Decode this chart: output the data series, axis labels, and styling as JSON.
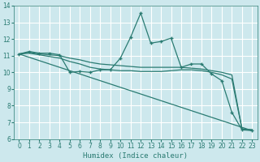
{
  "xlabel": "Humidex (Indice chaleur)",
  "xlim": [
    -0.5,
    23.5
  ],
  "ylim": [
    6,
    14
  ],
  "xticks": [
    0,
    1,
    2,
    3,
    4,
    5,
    6,
    7,
    8,
    9,
    10,
    11,
    12,
    13,
    14,
    15,
    16,
    17,
    18,
    19,
    20,
    21,
    22,
    23
  ],
  "yticks": [
    6,
    7,
    8,
    9,
    10,
    11,
    12,
    13,
    14
  ],
  "bg_color": "#cde8ed",
  "grid_color": "#ffffff",
  "line_color": "#2a7b72",
  "lines": [
    {
      "x": [
        0,
        1,
        2,
        3,
        4,
        5,
        6,
        7,
        8,
        9,
        10,
        11,
        12,
        13,
        14,
        15,
        16,
        17,
        18,
        19,
        20,
        21,
        22,
        23
      ],
      "y": [
        11.1,
        11.25,
        11.15,
        11.15,
        11.05,
        10.0,
        10.05,
        10.0,
        10.15,
        10.15,
        10.85,
        12.1,
        13.55,
        11.75,
        11.85,
        12.05,
        10.3,
        10.5,
        10.5,
        9.9,
        9.5,
        7.6,
        6.55,
        6.5
      ],
      "marker": "+",
      "linestyle": "-"
    },
    {
      "x": [
        0,
        1,
        2,
        3,
        4,
        5,
        6,
        7,
        8,
        9,
        10,
        11,
        12,
        13,
        14,
        15,
        16,
        17,
        18,
        19,
        20,
        21,
        22,
        23
      ],
      "y": [
        11.1,
        11.2,
        11.1,
        11.05,
        11.0,
        10.85,
        10.75,
        10.6,
        10.5,
        10.45,
        10.4,
        10.35,
        10.3,
        10.3,
        10.3,
        10.3,
        10.3,
        10.25,
        10.2,
        10.1,
        10.0,
        9.85,
        6.6,
        6.55
      ],
      "marker": null,
      "linestyle": "-"
    },
    {
      "x": [
        0,
        1,
        2,
        3,
        4,
        5,
        6,
        7,
        8,
        9,
        10,
        11,
        12,
        13,
        14,
        15,
        16,
        17,
        18,
        19,
        20,
        21,
        22,
        23
      ],
      "y": [
        11.1,
        11.15,
        11.05,
        10.95,
        10.85,
        10.65,
        10.5,
        10.3,
        10.2,
        10.15,
        10.1,
        10.1,
        10.05,
        10.05,
        10.05,
        10.1,
        10.15,
        10.15,
        10.1,
        10.0,
        9.85,
        9.6,
        6.6,
        6.55
      ],
      "marker": null,
      "linestyle": "-"
    },
    {
      "x": [
        0,
        23
      ],
      "y": [
        11.1,
        6.5
      ],
      "marker": null,
      "linestyle": "-"
    }
  ]
}
